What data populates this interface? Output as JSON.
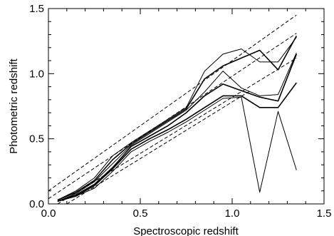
{
  "chart_data": {
    "type": "line",
    "title": "",
    "xlabel": "Spectroscopic redshift",
    "ylabel": "Photometric redshift",
    "xlim": [
      0.0,
      1.5
    ],
    "ylim": [
      0.0,
      1.5
    ],
    "xticks": [
      0.0,
      0.5,
      1.0,
      1.5
    ],
    "yticks": [
      0.0,
      0.5,
      1.0,
      1.5
    ],
    "xtick_labels": [
      "0.0",
      "0.5",
      "1.0",
      "1.5"
    ],
    "ytick_labels": [
      "0.0",
      "0.5",
      "1.0",
      "1.5"
    ],
    "grid": false,
    "legend": "none",
    "series": [
      {
        "style": "solid",
        "width": 1.0,
        "x": [
          0.05,
          0.15,
          0.25,
          0.35,
          0.45,
          0.55,
          0.65,
          0.75,
          0.85,
          0.95,
          1.05,
          1.15,
          1.25,
          1.35
        ],
        "y": [
          0.03,
          0.1,
          0.2,
          0.37,
          0.47,
          0.56,
          0.65,
          0.74,
          1.02,
          1.15,
          1.19,
          1.09,
          1.09,
          1.28
        ]
      },
      {
        "style": "solid",
        "width": 1.6,
        "x": [
          0.05,
          0.15,
          0.25,
          0.35,
          0.45,
          0.55,
          0.65,
          0.75,
          0.85,
          0.95,
          1.05,
          1.15,
          1.25,
          1.35
        ],
        "y": [
          0.03,
          0.09,
          0.18,
          0.34,
          0.46,
          0.55,
          0.64,
          0.73,
          0.96,
          1.06,
          1.12,
          1.18,
          1.03,
          1.29
        ]
      },
      {
        "style": "solid",
        "width": 1.0,
        "x": [
          0.05,
          0.15,
          0.25,
          0.35,
          0.45,
          0.55,
          0.65,
          0.75,
          0.85,
          0.95,
          1.05,
          1.15,
          1.25,
          1.35
        ],
        "y": [
          0.02,
          0.08,
          0.17,
          0.31,
          0.45,
          0.54,
          0.63,
          0.72,
          0.86,
          1.02,
          0.89,
          0.83,
          0.84,
          1.16
        ]
      },
      {
        "style": "solid",
        "width": 1.6,
        "x": [
          0.05,
          0.15,
          0.25,
          0.35,
          0.45,
          0.55,
          0.65,
          0.75,
          0.85,
          0.95,
          1.05,
          1.15,
          1.25,
          1.35
        ],
        "y": [
          0.02,
          0.07,
          0.15,
          0.28,
          0.44,
          0.52,
          0.6,
          0.7,
          0.83,
          0.92,
          0.87,
          0.82,
          0.79,
          1.15
        ]
      },
      {
        "style": "solid",
        "width": 1.6,
        "x": [
          0.05,
          0.15,
          0.25,
          0.35,
          0.45,
          0.55,
          0.65,
          0.75,
          0.85,
          0.95,
          1.05,
          1.15,
          1.25,
          1.35
        ],
        "y": [
          0.02,
          0.06,
          0.14,
          0.27,
          0.42,
          0.5,
          0.57,
          0.65,
          0.74,
          0.83,
          0.83,
          0.74,
          0.74,
          0.93
        ]
      },
      {
        "style": "solid",
        "width": 1.0,
        "x": [
          0.05,
          0.15,
          0.25,
          0.35,
          0.45,
          0.55,
          0.65,
          0.75,
          0.85,
          0.95,
          1.05,
          1.15,
          1.25,
          1.35
        ],
        "y": [
          0.02,
          0.06,
          0.12,
          0.25,
          0.4,
          0.48,
          0.55,
          0.63,
          0.72,
          0.81,
          0.82,
          0.09,
          0.71,
          0.26
        ]
      },
      {
        "style": "dashed",
        "width": 1.0,
        "x": [
          0.0,
          1.35
        ],
        "y": [
          0.1,
          1.45
        ]
      },
      {
        "style": "dashed",
        "width": 1.0,
        "x": [
          0.0,
          1.35
        ],
        "y": [
          0.04,
          1.31
        ]
      },
      {
        "style": "dashed",
        "width": 1.0,
        "x": [
          0.05,
          1.35
        ],
        "y": [
          0.0,
          1.12
        ]
      },
      {
        "style": "dashed",
        "width": 1.0,
        "x": [
          0.1,
          1.1
        ],
        "y": [
          0.0,
          0.87
        ]
      }
    ]
  }
}
